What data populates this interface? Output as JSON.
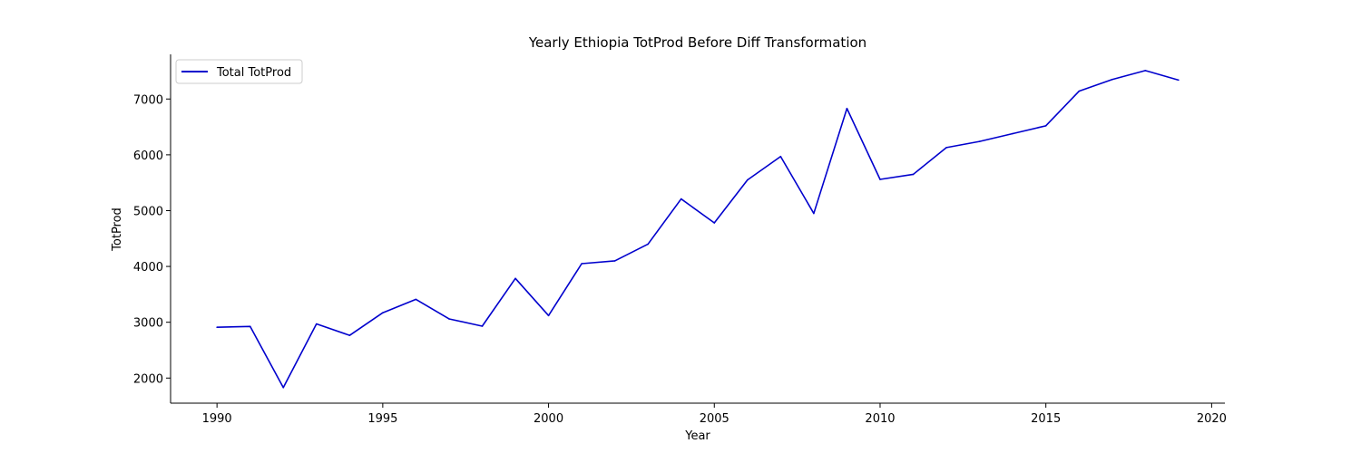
{
  "chart_data": {
    "type": "line",
    "title": "Yearly Ethiopia TotProd Before Diff Transformation",
    "xlabel": "Year",
    "ylabel": "TotProd",
    "xlim": [
      1988.6,
      2020.4
    ],
    "ylim": [
      1550,
      7800
    ],
    "xticks": [
      1990,
      1995,
      2000,
      2005,
      2010,
      2015,
      2020
    ],
    "yticks": [
      2000,
      3000,
      4000,
      5000,
      6000,
      7000
    ],
    "grid": false,
    "legend_position": "upper-left",
    "x": [
      1990,
      1991,
      1992,
      1993,
      1994,
      1995,
      1996,
      1997,
      1998,
      1999,
      2000,
      2001,
      2002,
      2003,
      2004,
      2005,
      2006,
      2007,
      2008,
      2009,
      2010,
      2011,
      2012,
      2013,
      2014,
      2015,
      2016,
      2017,
      2018,
      2019
    ],
    "series": [
      {
        "name": "Total TotProd",
        "color": "#0000cd",
        "values": [
          2910,
          2925,
          1830,
          2970,
          2765,
          3170,
          3410,
          3060,
          2930,
          3785,
          3120,
          4050,
          4100,
          4400,
          5210,
          4780,
          5550,
          5970,
          4950,
          6830,
          5560,
          5650,
          6130,
          6240,
          6380,
          6520,
          7140,
          7350,
          7510,
          7340
        ]
      }
    ]
  }
}
